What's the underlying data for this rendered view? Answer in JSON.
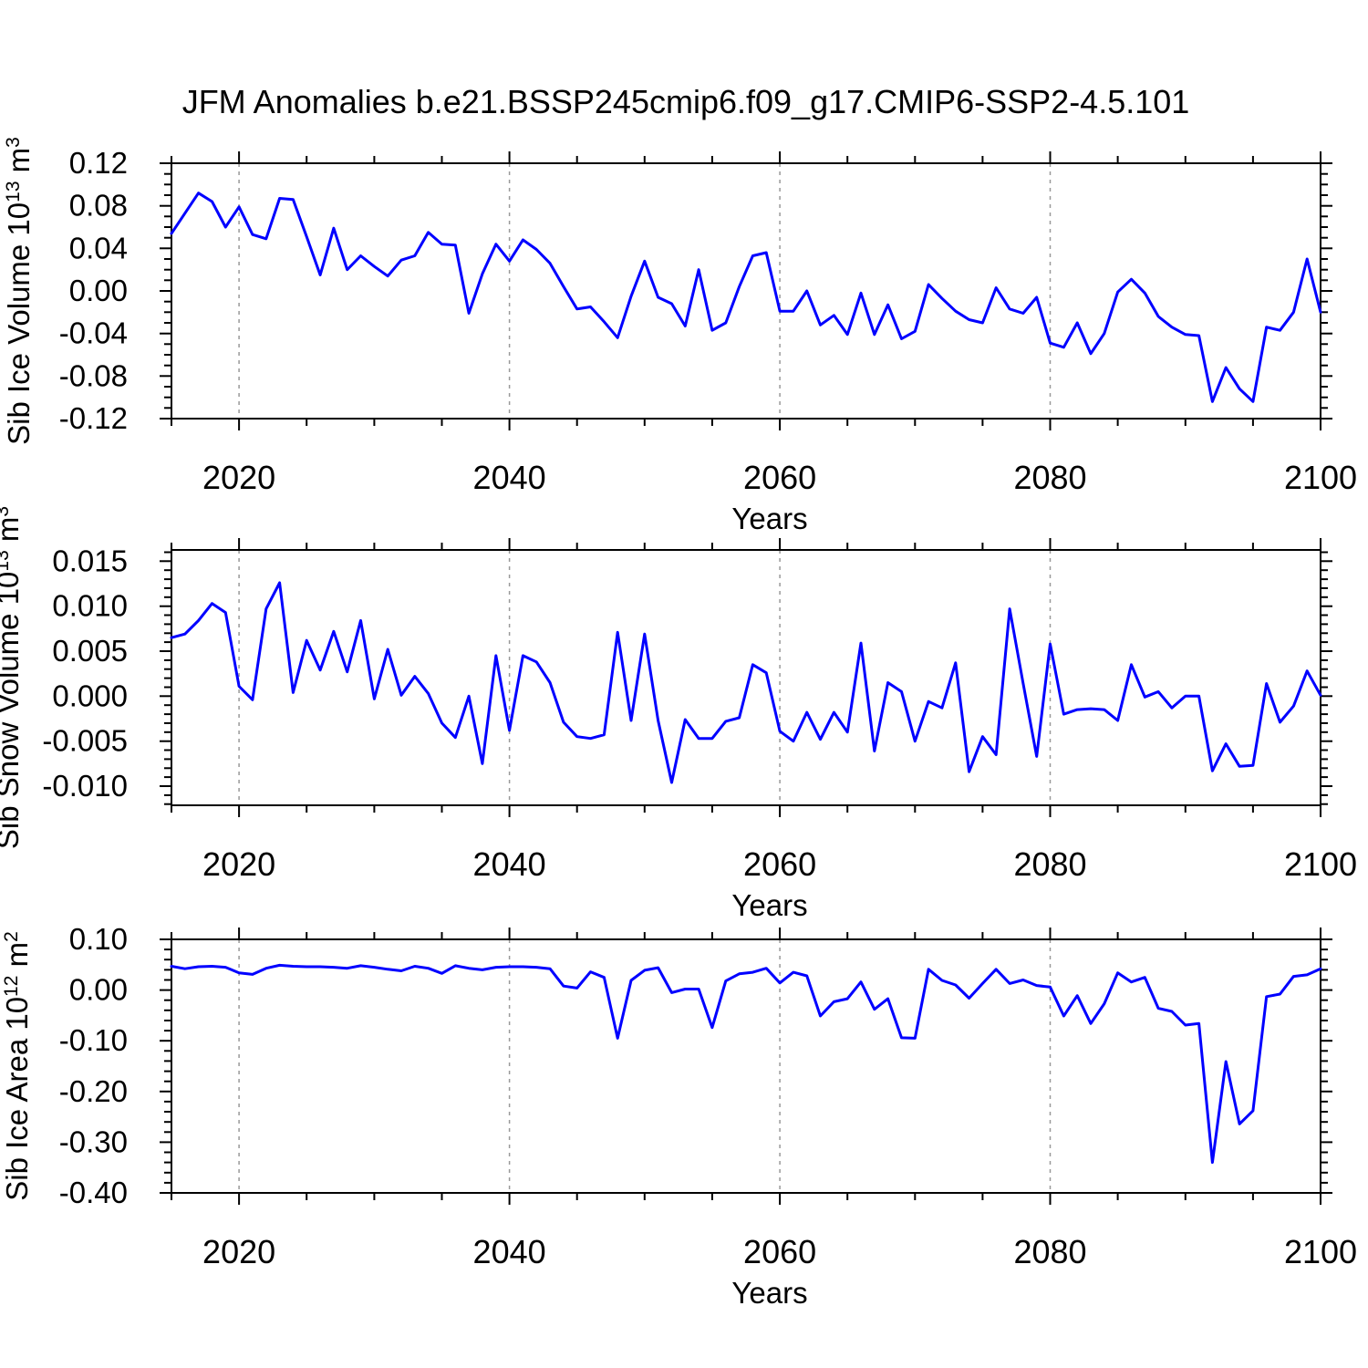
{
  "title": "JFM Anomalies b.e21.BSSP245cmip6.f09_g17.CMIP6-SSP2-4.5.101",
  "colors": {
    "line": "#0000ff",
    "frame": "#000000",
    "grid": "#999999"
  },
  "chart_data": {
    "x": {
      "label": "Years",
      "start": 2015,
      "end": 2100,
      "step": 1,
      "major_ticks": [
        2020,
        2040,
        2060,
        2080,
        2100
      ],
      "minor_step": 5,
      "gridline_years": [
        2020,
        2040,
        2060,
        2080
      ]
    },
    "panels": [
      {
        "name": "sib-ice-volume",
        "type": "line",
        "ylabel": "Sib Ice Volume 10^13 m^3",
        "ylabel_parts": [
          "Sib Ice Volume 10",
          "13",
          " m",
          "3"
        ],
        "xlabel": "Years",
        "ylim": [
          -0.12,
          0.12
        ],
        "yticks": [
          0.12,
          0.08,
          0.04,
          0.0,
          -0.04,
          -0.08,
          -0.12
        ],
        "ytick_decimals": 2,
        "y_minor_step": 0.01,
        "values": [
          0.054,
          0.073,
          0.092,
          0.084,
          0.06,
          0.079,
          0.053,
          0.049,
          0.087,
          0.086,
          0.051,
          0.015,
          0.059,
          0.02,
          0.033,
          0.023,
          0.014,
          0.029,
          0.033,
          0.055,
          0.044,
          0.043,
          -0.021,
          0.016,
          0.044,
          0.028,
          0.048,
          0.039,
          0.026,
          0.004,
          -0.017,
          -0.015,
          -0.029,
          -0.044,
          -0.005,
          0.028,
          -0.006,
          -0.012,
          -0.033,
          0.02,
          -0.037,
          -0.03,
          0.004,
          0.033,
          0.036,
          -0.019,
          -0.019,
          0.0,
          -0.032,
          -0.023,
          -0.041,
          -0.002,
          -0.041,
          -0.013,
          -0.045,
          -0.038,
          0.006,
          -0.007,
          -0.019,
          -0.027,
          -0.03,
          0.003,
          -0.017,
          -0.021,
          -0.006,
          -0.049,
          -0.053,
          -0.03,
          -0.059,
          -0.04,
          -0.001,
          0.011,
          -0.002,
          -0.024,
          -0.034,
          -0.041,
          -0.042,
          -0.104,
          -0.072,
          -0.092,
          -0.104,
          -0.034,
          -0.037,
          -0.02,
          0.03,
          -0.02
        ]
      },
      {
        "name": "sib-snow-volume",
        "type": "line",
        "ylabel": "Sib Snow Volume 10^13 m^3",
        "ylabel_parts": [
          "Sib Snow Volume 10",
          "13",
          " m",
          "3"
        ],
        "xlabel": "Years",
        "ylim": [
          -0.01213,
          0.01625
        ],
        "yticks": [
          0.015,
          0.01,
          0.005,
          0.0,
          -0.005,
          -0.01
        ],
        "ytick_decimals": 3,
        "y_minor_step": 0.001,
        "values": [
          0.0065,
          0.0069,
          0.0084,
          0.0103,
          0.0093,
          0.0011,
          -0.0004,
          0.0097,
          0.0126,
          0.0004,
          0.0062,
          0.0029,
          0.0072,
          0.0027,
          0.0084,
          -0.0003,
          0.0052,
          0.0001,
          0.0022,
          0.0003,
          -0.003,
          -0.0046,
          0.0,
          -0.0075,
          0.0045,
          -0.0038,
          0.0045,
          0.0038,
          0.0015,
          -0.0029,
          -0.0045,
          -0.0047,
          -0.0043,
          0.0071,
          -0.0027,
          0.0069,
          -0.0027,
          -0.0096,
          -0.0026,
          -0.0047,
          -0.0047,
          -0.0028,
          -0.0024,
          0.0035,
          0.0026,
          -0.0039,
          -0.005,
          -0.0018,
          -0.0048,
          -0.0018,
          -0.004,
          0.0059,
          -0.0061,
          0.0015,
          0.0005,
          -0.005,
          -0.0006,
          -0.0013,
          0.0037,
          -0.0084,
          -0.0045,
          -0.0065,
          0.0097,
          0.0014,
          -0.0067,
          0.0058,
          -0.002,
          -0.0015,
          -0.0014,
          -0.0015,
          -0.0027,
          0.0035,
          -0.0001,
          0.0005,
          -0.0013,
          0.0,
          0.0,
          -0.0083,
          -0.0053,
          -0.0078,
          -0.0077,
          0.0014,
          -0.0029,
          -0.0011,
          0.0028,
          0.0001
        ]
      },
      {
        "name": "sib-ice-area",
        "type": "line",
        "ylabel": "Sib Ice Area 10^12 m^2",
        "ylabel_parts": [
          "Sib Ice Area 10",
          "12",
          " m",
          "2"
        ],
        "xlabel": "Years",
        "ylim": [
          -0.4,
          0.1
        ],
        "yticks": [
          0.1,
          0.0,
          -0.1,
          -0.2,
          -0.3,
          -0.4
        ],
        "ytick_decimals": 2,
        "y_minor_step": 0.02,
        "values": [
          0.047,
          0.042,
          0.046,
          0.047,
          0.045,
          0.034,
          0.031,
          0.043,
          0.049,
          0.047,
          0.046,
          0.046,
          0.045,
          0.043,
          0.048,
          0.045,
          0.041,
          0.038,
          0.047,
          0.043,
          0.033,
          0.048,
          0.043,
          0.04,
          0.045,
          0.046,
          0.046,
          0.045,
          0.042,
          0.008,
          0.004,
          0.036,
          0.025,
          -0.095,
          0.019,
          0.039,
          0.044,
          -0.005,
          0.002,
          0.002,
          -0.074,
          0.018,
          0.032,
          0.035,
          0.043,
          0.014,
          0.035,
          0.028,
          -0.051,
          -0.023,
          -0.017,
          0.016,
          -0.038,
          -0.017,
          -0.094,
          -0.095,
          0.041,
          0.019,
          0.01,
          -0.016,
          0.013,
          0.041,
          0.013,
          0.02,
          0.009,
          0.006,
          -0.051,
          -0.011,
          -0.066,
          -0.027,
          0.034,
          0.016,
          0.025,
          -0.036,
          -0.042,
          -0.069,
          -0.066,
          -0.34,
          -0.141,
          -0.264,
          -0.238,
          -0.013,
          -0.008,
          0.027,
          0.03,
          0.042
        ]
      }
    ]
  }
}
